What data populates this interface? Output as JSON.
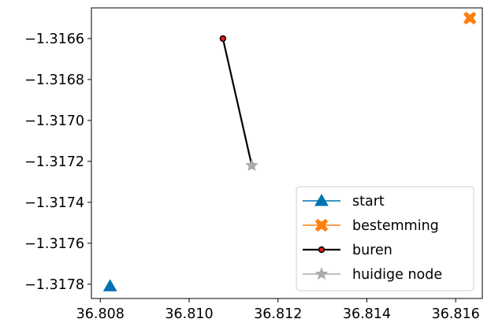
{
  "chart_data": {
    "type": "scatter",
    "title": "",
    "xlabel": "",
    "ylabel": "",
    "xlim": [
      36.8078,
      36.8166
    ],
    "ylim": [
      -1.31787,
      -1.31645
    ],
    "grid": false,
    "legend_position": "lower-right",
    "x_ticks": [
      {
        "value": 36.808,
        "label": "36.808"
      },
      {
        "value": 36.81,
        "label": "36.810"
      },
      {
        "value": 36.812,
        "label": "36.812"
      },
      {
        "value": 36.814,
        "label": "36.814"
      },
      {
        "value": 36.816,
        "label": "36.816"
      }
    ],
    "y_ticks": [
      {
        "value": -1.3166,
        "label": "−1.3166"
      },
      {
        "value": -1.3168,
        "label": "−1.3168"
      },
      {
        "value": -1.317,
        "label": "−1.3170"
      },
      {
        "value": -1.3172,
        "label": "−1.3172"
      },
      {
        "value": -1.3174,
        "label": "−1.3174"
      },
      {
        "value": -1.3176,
        "label": "−1.3176"
      },
      {
        "value": -1.3178,
        "label": "−1.3178"
      }
    ],
    "series": [
      {
        "name": "start",
        "color": "#0072b2",
        "marker": "triangle",
        "points": [
          {
            "x": 36.80822,
            "y": -1.31781
          }
        ]
      },
      {
        "name": "bestemming",
        "color": "#ff7f0e",
        "marker": "x-cross",
        "points": [
          {
            "x": 36.81632,
            "y": -1.3165
          }
        ]
      },
      {
        "name": "buren",
        "color": "#000000",
        "marker_fill": "#e41a1c",
        "marker": "circle",
        "line": true,
        "points": [
          {
            "x": 36.81076,
            "y": -1.3166
          },
          {
            "x": 36.81141,
            "y": -1.31722
          }
        ]
      },
      {
        "name": "huidige node",
        "color": "#aaaaaa",
        "marker": "star",
        "points": [
          {
            "x": 36.81141,
            "y": -1.31722
          }
        ]
      }
    ]
  }
}
